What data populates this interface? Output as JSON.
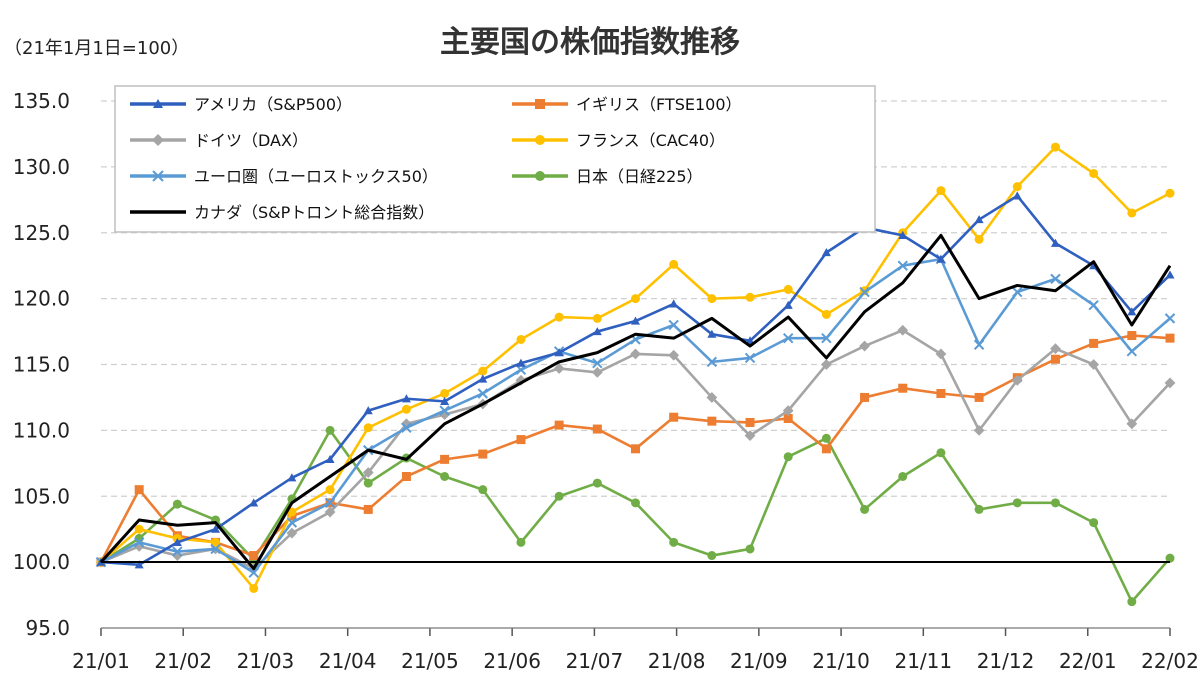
{
  "chart_data": {
    "type": "line",
    "title": "主要国の株価指数推移",
    "subtitle": "（21年1月1日=100）",
    "xlabel": "",
    "ylabel": "",
    "ylim": [
      95,
      135
    ],
    "y_ticks": [
      "95.0",
      "100.0",
      "105.0",
      "110.0",
      "115.0",
      "120.0",
      "125.0",
      "130.0",
      "135.0"
    ],
    "x_ticks": [
      "21/01",
      "21/02",
      "21/03",
      "21/04",
      "21/05",
      "21/06",
      "21/07",
      "21/08",
      "21/09",
      "21/10",
      "21/11",
      "21/12",
      "22/01",
      "22/02"
    ],
    "grid": true,
    "legend_position": "top-left",
    "baseline": 100,
    "series": [
      {
        "name": "アメリカ（S&P500）",
        "color": "#2f5fbf",
        "marker": "triangle",
        "values": [
          100,
          99.8,
          101.5,
          102.5,
          104.5,
          106.4,
          107.8,
          111.5,
          112.4,
          112.2,
          113.9,
          115.1,
          115.9,
          117.5,
          118.3,
          119.6,
          117.3,
          116.8,
          119.5,
          123.5,
          125.4,
          124.8,
          123.0,
          126.0,
          127.8,
          124.2,
          122.5,
          119.0,
          121.8
        ]
      },
      {
        "name": "イギリス（FTSE100）",
        "color": "#ed7d31",
        "marker": "square",
        "values": [
          100,
          105.5,
          102.0,
          101.5,
          100.5,
          103.5,
          104.5,
          104.0,
          106.5,
          107.8,
          108.2,
          109.3,
          110.4,
          110.1,
          108.6,
          111.0,
          110.7,
          110.6,
          110.9,
          108.6,
          112.5,
          113.2,
          112.8,
          112.5,
          114.0,
          115.4,
          116.6,
          117.2,
          117.0
        ]
      },
      {
        "name": "ドイツ（DAX）",
        "color": "#a5a5a5",
        "marker": "diamond",
        "values": [
          100,
          101.2,
          100.5,
          101.0,
          99.5,
          102.2,
          103.8,
          106.8,
          110.5,
          111.2,
          112.0,
          113.8,
          114.7,
          114.4,
          115.8,
          115.7,
          112.5,
          109.6,
          111.5,
          115.0,
          116.4,
          117.6,
          115.8,
          110.0,
          113.8,
          116.2,
          115.0,
          110.5,
          113.6
        ]
      },
      {
        "name": "フランス（CAC40）",
        "color": "#ffc000",
        "marker": "circle",
        "values": [
          100,
          102.5,
          101.8,
          101.5,
          98.0,
          103.8,
          105.5,
          110.2,
          111.6,
          112.8,
          114.5,
          116.9,
          118.6,
          118.5,
          120.0,
          122.6,
          120.0,
          120.1,
          120.7,
          118.8,
          120.6,
          125.0,
          128.2,
          124.5,
          128.5,
          131.5,
          129.5,
          126.5,
          128.0
        ]
      },
      {
        "name": "ユーロ圏（ユーロストックス50）",
        "color": "#5b9bd5",
        "marker": "cross",
        "values": [
          100,
          101.5,
          100.8,
          101.0,
          99.2,
          103.0,
          104.5,
          108.5,
          110.2,
          111.5,
          112.8,
          114.6,
          116.0,
          115.1,
          116.9,
          118.0,
          115.2,
          115.5,
          117.0,
          117.0,
          120.5,
          122.5,
          123.0,
          116.5,
          120.5,
          121.5,
          119.5,
          116.0,
          118.5
        ]
      },
      {
        "name": "日本（日経225）",
        "color": "#70ad47",
        "marker": "circle",
        "values": [
          100,
          101.8,
          104.4,
          103.2,
          100.2,
          104.8,
          110.0,
          106.0,
          107.9,
          106.5,
          105.5,
          101.5,
          105.0,
          106.0,
          104.5,
          101.5,
          100.5,
          101.0,
          108.0,
          109.4,
          104.0,
          106.5,
          108.3,
          104.0,
          104.5,
          104.5,
          103.0,
          97.0,
          100.3
        ]
      },
      {
        "name": "カナダ（S&Pトロント総合指数）",
        "color": "#000000",
        "marker": "none",
        "values": [
          100,
          103.2,
          102.8,
          103.0,
          99.5,
          104.5,
          106.5,
          108.5,
          107.8,
          110.5,
          112.0,
          113.6,
          115.2,
          115.9,
          117.3,
          117.0,
          118.5,
          116.4,
          118.6,
          115.5,
          119.0,
          121.2,
          124.8,
          120.0,
          121.0,
          120.6,
          122.8,
          118.0,
          122.5
        ]
      }
    ]
  }
}
